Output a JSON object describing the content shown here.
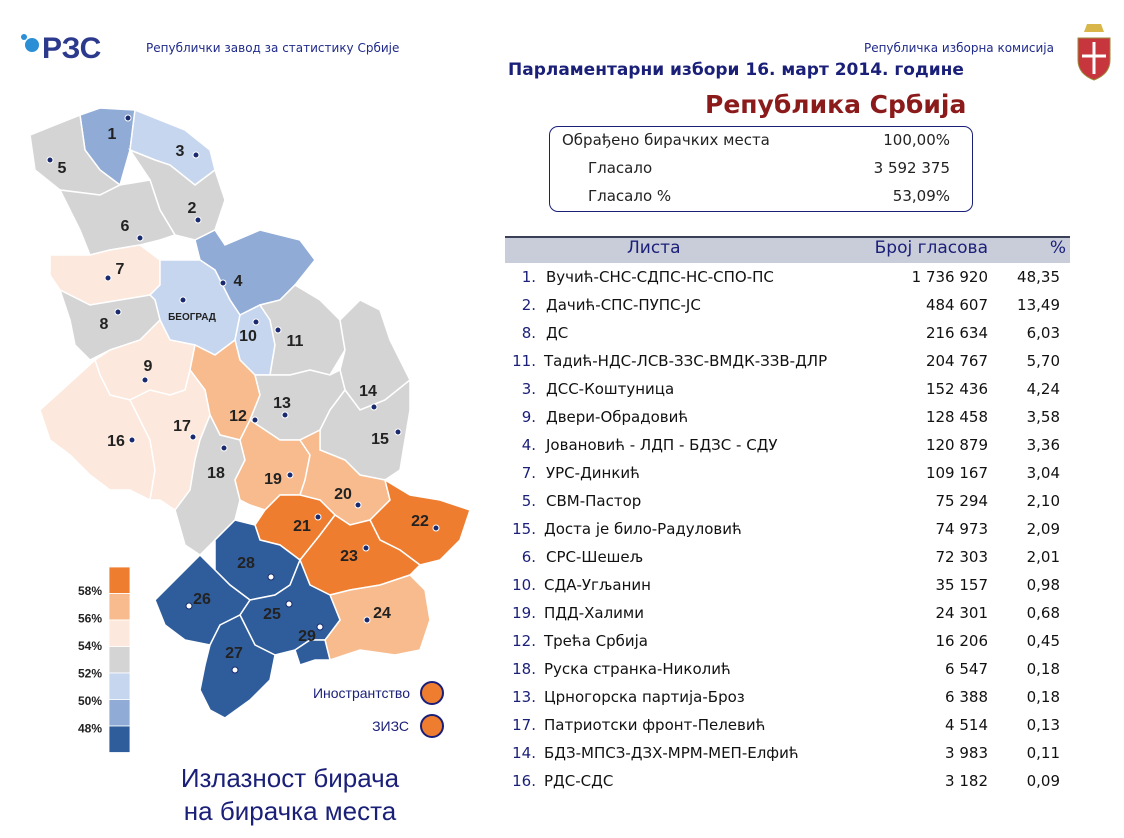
{
  "header": {
    "logo": "РЗС",
    "institute": "Републички завод за статистику Србије",
    "commission": "Републичка изборна комисија",
    "title": "Парламентарни избори 16. март 2014. године",
    "region": "Република Србија"
  },
  "summary": [
    {
      "label": "Обрађено бирачких места",
      "value": "100,00%"
    },
    {
      "label": "Гласало",
      "value": "3 592 375"
    },
    {
      "label": "Гласало %",
      "value": "53,09%"
    }
  ],
  "table": {
    "columns": [
      "Листа",
      "Број гласова",
      "%"
    ],
    "rows": [
      [
        "1.",
        "Вучић-СНС-СДПС-НС-СПО-ПС",
        "1 736 920",
        "48,35"
      ],
      [
        "2.",
        "Дачић-СПС-ПУПС-ЈС",
        "484 607",
        "13,49"
      ],
      [
        "8.",
        "ДС",
        "216 634",
        "6,03"
      ],
      [
        "11.",
        "Тадић-НДС-ЛСВ-ЗЗС-ВМДК-ЗЗВ-ДЛР",
        "204 767",
        "5,70"
      ],
      [
        "3.",
        "ДСС-Коштуница",
        "152 436",
        "4,24"
      ],
      [
        "9.",
        "Двери-Обрадовић",
        "128 458",
        "3,58"
      ],
      [
        "4.",
        "Јовановић - ЛДП - БДЗС - СДУ",
        "120 879",
        "3,36"
      ],
      [
        "7.",
        "УРС-Динкић",
        "109 167",
        "3,04"
      ],
      [
        "5.",
        "СВМ-Пастор",
        "75 294",
        "2,10"
      ],
      [
        "15.",
        "Доста је било-Радуловић",
        "74 973",
        "2,09"
      ],
      [
        "6.",
        "СРС-Шешељ",
        "72 303",
        "2,01"
      ],
      [
        "10.",
        "СДА-Угљанин",
        "35 157",
        "0,98"
      ],
      [
        "19.",
        "ПДД-Халими",
        "24 301",
        "0,68"
      ],
      [
        "12.",
        "Трећа Србија",
        "16 206",
        "0,45"
      ],
      [
        "18.",
        "Руска странка-Николић",
        "6 547",
        "0,18"
      ],
      [
        "13.",
        "Црногорска партија-Броз",
        "6 388",
        "0,18"
      ],
      [
        "17.",
        "Патриотски фронт-Пелевић",
        "4 514",
        "0,13"
      ],
      [
        "14.",
        "БДЗ-МПСЗ-ДЗХ-МРМ-МЕП-Елфић",
        "3 983",
        "0,11"
      ],
      [
        "16.",
        "РДС-СДС",
        "3 182",
        "0,09"
      ]
    ]
  },
  "map": {
    "regions": [
      {
        "label": "1",
        "color": "#8fabd6"
      },
      {
        "label": "3",
        "color": "#c6d6ef"
      },
      {
        "label": "5",
        "color": "#d4d4d4"
      },
      {
        "label": "2",
        "color": "#d4d4d4"
      },
      {
        "label": "6",
        "color": "#d4d4d4"
      },
      {
        "label": "7",
        "color": "#fce8dc"
      },
      {
        "label": "4",
        "color": "#8fabd6"
      },
      {
        "label": "БЕОГРАД",
        "color": "#c6d6ef"
      },
      {
        "label": "8",
        "color": "#d4d4d4"
      },
      {
        "label": "10",
        "color": "#c6d6ef"
      },
      {
        "label": "11",
        "color": "#d4d4d4"
      },
      {
        "label": "9",
        "color": "#fce8dc"
      },
      {
        "label": "14",
        "color": "#d4d4d4"
      },
      {
        "label": "12",
        "color": "#f7bb8e"
      },
      {
        "label": "13",
        "color": "#d4d4d4"
      },
      {
        "label": "15",
        "color": "#d4d4d4"
      },
      {
        "label": "16",
        "color": "#fce8dc"
      },
      {
        "label": "17",
        "color": "#fce8dc"
      },
      {
        "label": "18",
        "color": "#d4d4d4"
      },
      {
        "label": "19",
        "color": "#f7bb8e"
      },
      {
        "label": "20",
        "color": "#f7bb8e"
      },
      {
        "label": "21",
        "color": "#ee7d30"
      },
      {
        "label": "22",
        "color": "#ee7d30"
      },
      {
        "label": "23",
        "color": "#ee7d30"
      },
      {
        "label": "24",
        "color": "#f7bb8e"
      },
      {
        "label": "28",
        "color": "#2f5d9c"
      },
      {
        "label": "26",
        "color": "#2f5d9c"
      },
      {
        "label": "25",
        "color": "#2f5d9c"
      },
      {
        "label": "29",
        "color": "#2f5d9c"
      },
      {
        "label": "27",
        "color": "#2f5d9c"
      }
    ],
    "legend": {
      "labels": [
        "58%",
        "56%",
        "54%",
        "52%",
        "50%",
        "48%"
      ],
      "colors": [
        "#ee7d30",
        "#f7bb8e",
        "#fce8dc",
        "#d4d4d4",
        "#c6d6ef",
        "#8fabd6",
        "#2f5d9c"
      ]
    },
    "extra": [
      {
        "label": "Инострантство",
        "color": "#ee7d30"
      },
      {
        "label": "ЗИЗС",
        "color": "#ee7d30"
      }
    ],
    "caption": [
      "Излазност бирача",
      "на бирачка места"
    ]
  }
}
